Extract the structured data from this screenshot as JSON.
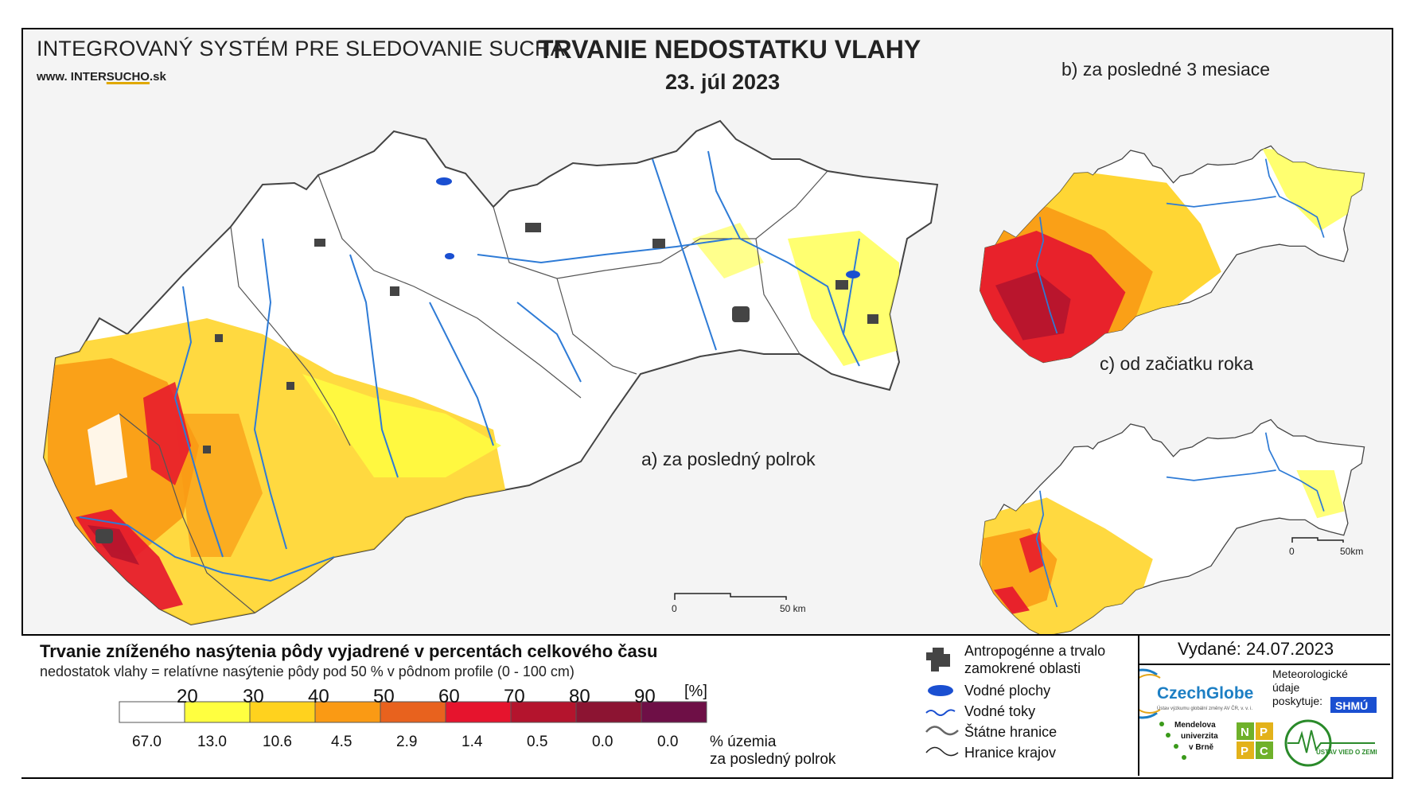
{
  "header": {
    "system_title": "INTEGROVANÝ SYSTÉM PRE SLEDOVANIE SUCHA",
    "website_prefix": "www. INTER",
    "website_underlined": "SUCHO",
    "website_suffix": ".sk",
    "main_title": "TRVANIE NEDOSTATKU VLAHY",
    "date": "23. júl 2023"
  },
  "panels": {
    "a_label": "a) za posledný polrok",
    "b_label": "b) za posledné 3 mesiace",
    "c_label": "c) od začiatku roka"
  },
  "scale_bars": {
    "main_zero": "0",
    "main_end": "50 km",
    "small_zero": "0",
    "small_end": "50km"
  },
  "legend": {
    "title": "Trvanie zníženého nasýtenia pôdy vyjadrené v percentách celkového času",
    "subtitle": "nedostatok vlahy = relatívne nasýtenie pôdy pod 50 % v pôdnom profile (0 - 100 cm)",
    "ticks": [
      "20",
      "30",
      "40",
      "50",
      "60",
      "70",
      "80",
      "90"
    ],
    "unit": "[%]",
    "colors": [
      "#ffffff",
      "#ffff40",
      "#ffd21e",
      "#fa9a14",
      "#e8621e",
      "#e6142d",
      "#b4142d",
      "#8c1432",
      "#6e0f46"
    ],
    "area_percent": [
      "67.0",
      "13.0",
      "10.6",
      "4.5",
      "2.9",
      "1.4",
      "0.5",
      "0.0",
      "0.0"
    ],
    "area_caption_1": "% územia",
    "area_caption_2": "za posledný polrok"
  },
  "symbols": {
    "anthropogenic_1": "Antropogénne a trvalo",
    "anthropogenic_2": "zamokrené oblasti",
    "water_bodies": "Vodné plochy",
    "water_streams": "Vodné toky",
    "state_border": "Štátne hranice",
    "region_border": "Hranice krajov"
  },
  "issued": "Vydané: 24.07.2023",
  "logos": {
    "czechglobe": "CzechGlobe",
    "czechglobe_sub": "Ústav výzkumu globální změny AV ČR, v. v. i.",
    "meteo_1": "Meteorologické",
    "meteo_2": "údaje",
    "meteo_3": "poskytuje:",
    "shmu": "SHMÚ",
    "mendel_1": "Mendelova",
    "mendel_2": "univerzita",
    "mendel_3": "v Brně",
    "nppc": [
      "N",
      "P",
      "P",
      "C"
    ],
    "uvz": "ÚSTAV VIED O ZEMI"
  }
}
